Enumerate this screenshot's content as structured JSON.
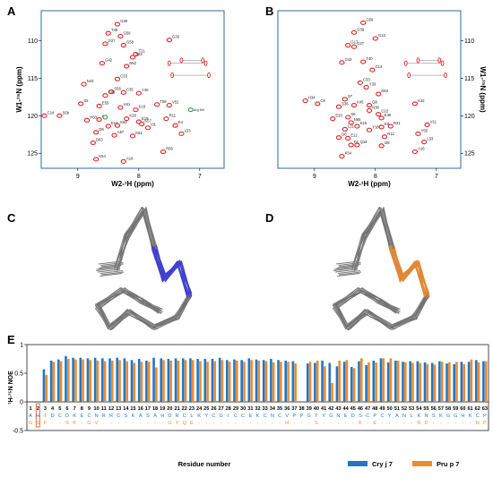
{
  "panels": {
    "A": "A",
    "B": "B",
    "C": "C",
    "D": "D",
    "E": "E"
  },
  "nmr": [
    {
      "id": "A",
      "x_label": "W2-¹H (ppm)",
      "y_label": "W1-¹⁵N (ppm)",
      "x_ticks": [
        "9",
        "8",
        "7"
      ],
      "y_ticks": [
        "110",
        "115",
        "120",
        "125"
      ],
      "xlim": [
        9.6,
        6.6
      ],
      "ylim": [
        106,
        127
      ]
    },
    {
      "id": "B",
      "x_label": "W2-¹H (ppm)",
      "y_label": "W1-¹⁵N (ppm)",
      "x_ticks": [
        "9",
        "8",
        "7"
      ],
      "y_ticks": [
        "110",
        "115",
        "120",
        "125"
      ],
      "xlim": [
        9.6,
        6.6
      ],
      "ylim": [
        106,
        127
      ]
    }
  ],
  "peaks_B": [
    {
      "label": "G58",
      "x": 8.2,
      "y": 107.6
    },
    {
      "label": "G39",
      "x": 8.35,
      "y": 108.9
    },
    {
      "label": "G10",
      "x": 8.0,
      "y": 109.7
    },
    {
      "label": "G17",
      "x": 8.45,
      "y": 110.6
    },
    {
      "label": "G27",
      "x": 8.35,
      "y": 110.8
    },
    {
      "label": "G42",
      "x": 8.55,
      "y": 112.9
    },
    {
      "label": "T40",
      "x": 8.2,
      "y": 112.8
    },
    {
      "label": "C13",
      "x": 8.05,
      "y": 113.9
    },
    {
      "label": "C33",
      "x": 8.25,
      "y": 115.6
    },
    {
      "label": "Y33",
      "x": 8.15,
      "y": 116.2
    },
    {
      "label": "D62",
      "x": 7.95,
      "y": 117.1
    },
    {
      "label": "S7",
      "x": 8.5,
      "y": 117.8
    },
    {
      "label": "K32",
      "x": 7.35,
      "y": 118.4
    },
    {
      "label": "H34",
      "x": 9.15,
      "y": 118.0
    },
    {
      "label": "C9",
      "x": 8.95,
      "y": 118.4
    },
    {
      "label": "S36",
      "x": 8.6,
      "y": 118.8
    },
    {
      "label": "K45",
      "x": 8.35,
      "y": 118.6
    },
    {
      "label": "Q8",
      "x": 8.1,
      "y": 118.6
    },
    {
      "label": "N36",
      "x": 8.1,
      "y": 119.3
    },
    {
      "label": "C22",
      "x": 7.95,
      "y": 119.8
    },
    {
      "label": "E46",
      "x": 7.9,
      "y": 120.3
    },
    {
      "label": "C26",
      "x": 9.7,
      "y": 120.7
    },
    {
      "label": "E20",
      "x": 8.7,
      "y": 120.4
    },
    {
      "label": "S9",
      "x": 8.45,
      "y": 120.2
    },
    {
      "label": "N55",
      "x": 8.4,
      "y": 120.9
    },
    {
      "label": "L21",
      "x": 8.5,
      "y": 121.8
    },
    {
      "label": "K15",
      "x": 8.3,
      "y": 121.4
    },
    {
      "label": "Y18",
      "x": 8.1,
      "y": 121.9
    },
    {
      "label": "K8",
      "x": 7.9,
      "y": 121.5
    },
    {
      "label": "R21",
      "x": 7.75,
      "y": 121.4
    },
    {
      "label": "V11",
      "x": 7.15,
      "y": 121.2
    },
    {
      "label": "D6",
      "x": 8.6,
      "y": 122.9
    },
    {
      "label": "E11",
      "x": 8.45,
      "y": 123.0
    },
    {
      "label": "R12",
      "x": 7.85,
      "y": 122.8
    },
    {
      "label": "Y50",
      "x": 7.3,
      "y": 122.4
    },
    {
      "label": "L53",
      "x": 7.2,
      "y": 123.5
    },
    {
      "label": "F4",
      "x": 8.4,
      "y": 123.9
    },
    {
      "label": "Q19",
      "x": 8.3,
      "y": 123.9
    },
    {
      "label": "I28",
      "x": 7.9,
      "y": 124.0
    },
    {
      "label": "A16",
      "x": 7.35,
      "y": 124.8
    },
    {
      "label": "K54",
      "x": 8.55,
      "y": 125.4
    },
    {
      "label": "C30",
      "x": 9.7,
      "y": 122.8
    }
  ],
  "peaks_A": [
    {
      "label": "G39",
      "x": 8.35,
      "y": 107.8
    },
    {
      "label": "T48",
      "x": 8.5,
      "y": 109.0
    },
    {
      "label": "G59",
      "x": 8.3,
      "y": 109.4
    },
    {
      "label": "G27",
      "x": 8.55,
      "y": 110.4
    },
    {
      "label": "G58",
      "x": 8.25,
      "y": 110.6
    },
    {
      "label": "G35",
      "x": 7.5,
      "y": 109.9
    },
    {
      "label": "T21",
      "x": 8.05,
      "y": 111.8
    },
    {
      "label": "G42",
      "x": 8.6,
      "y": 113.0
    },
    {
      "label": "N62",
      "x": 8.2,
      "y": 113.4
    },
    {
      "label": "S23",
      "x": 8.1,
      "y": 112.2
    },
    {
      "label": "C33",
      "x": 8.35,
      "y": 115.1
    },
    {
      "label": "N43",
      "x": 8.9,
      "y": 115.8
    },
    {
      "label": "S56",
      "x": 8.45,
      "y": 116.8
    },
    {
      "label": "C49",
      "x": 8.55,
      "y": 117.3
    },
    {
      "label": "C35",
      "x": 8.25,
      "y": 116.9
    },
    {
      "label": "Y40",
      "x": 8.0,
      "y": 117.0
    },
    {
      "label": "S5",
      "x": 8.95,
      "y": 118.4
    },
    {
      "label": "E55",
      "x": 8.65,
      "y": 118.7
    },
    {
      "label": "H41",
      "x": 8.3,
      "y": 118.9
    },
    {
      "label": "K16",
      "x": 8.05,
      "y": 119.2
    },
    {
      "label": "T58",
      "x": 7.7,
      "y": 118.5
    },
    {
      "label": "V52",
      "x": 7.5,
      "y": 118.6
    },
    {
      "label": "C24",
      "x": 9.55,
      "y": 120.0
    },
    {
      "label": "S5b",
      "x": 9.3,
      "y": 120.0
    },
    {
      "label": "C30",
      "x": 9.75,
      "y": 121.6
    },
    {
      "label": "H60",
      "x": 8.85,
      "y": 120.6
    },
    {
      "label": "C9",
      "x": 8.65,
      "y": 120.5
    },
    {
      "label": "K28",
      "x": 8.2,
      "y": 120.4
    },
    {
      "label": "E19",
      "x": 8.0,
      "y": 120.8
    },
    {
      "label": "R11",
      "x": 7.55,
      "y": 120.4
    },
    {
      "label": "K57",
      "x": 7.95,
      "y": 121.1
    },
    {
      "label": "E10",
      "x": 8.5,
      "y": 121.4
    },
    {
      "label": "K53",
      "x": 8.35,
      "y": 121.3
    },
    {
      "label": "I31",
      "x": 7.85,
      "y": 121.6
    },
    {
      "label": "D8",
      "x": 8.7,
      "y": 122.2
    },
    {
      "label": "A57",
      "x": 8.4,
      "y": 122.6
    },
    {
      "label": "K61",
      "x": 8.1,
      "y": 122.7
    },
    {
      "label": "L53",
      "x": 7.3,
      "y": 122.4
    },
    {
      "label": "D63",
      "x": 8.75,
      "y": 123.6
    },
    {
      "label": "R56",
      "x": 7.6,
      "y": 124.8
    },
    {
      "label": "K54",
      "x": 8.7,
      "y": 125.8
    },
    {
      "label": "A18",
      "x": 8.25,
      "y": 126.1
    },
    {
      "label": "E4",
      "x": 7.4,
      "y": 121.3
    }
  ],
  "peaks_A_green": [
    {
      "label": "Arg NH",
      "x": 7.15,
      "y": 119.2
    },
    {
      "label": "",
      "x": 8.55,
      "y": 120.2
    }
  ],
  "chart_data": {
    "type": "bar",
    "title": "",
    "ylabel": "¹H-¹⁵N NOE",
    "xlabel": "Residue number",
    "ylim": [
      -0.5,
      1
    ],
    "y_ticks": [
      "1",
      "0.5",
      "0",
      "-0.5"
    ],
    "categories": [
      "1",
      "2",
      "3",
      "4",
      "5",
      "6",
      "7",
      "8",
      "9",
      "10",
      "11",
      "12",
      "13",
      "14",
      "15",
      "16",
      "17",
      "18",
      "19",
      "20",
      "21",
      "22",
      "23",
      "24",
      "25",
      "26",
      "27",
      "28",
      "29",
      "30",
      "31",
      "32",
      "33",
      "34",
      "35",
      "36",
      "37",
      "38",
      "39",
      "40",
      "41",
      "42",
      "43",
      "44",
      "45",
      "46",
      "47",
      "48",
      "49",
      "50",
      "51",
      "52",
      "53",
      "54",
      "55",
      "56",
      "57",
      "58",
      "59",
      "60",
      "61",
      "62",
      "63"
    ],
    "seq_cryj7": [
      "A",
      "H",
      "I",
      "D",
      "C",
      "D",
      "K",
      "E",
      "C",
      "N",
      "R",
      "R",
      "C",
      "S",
      "K",
      "A",
      "S",
      "A",
      "H",
      "D",
      "R",
      "C",
      "L",
      "K",
      "Y",
      "C",
      "G",
      "I",
      "C",
      "C",
      "E",
      "K",
      "C",
      "N",
      "C",
      "V",
      "P",
      "P",
      "G",
      "T",
      "Y",
      "G",
      "N",
      "E",
      "D",
      "S",
      "C",
      "P",
      "C",
      "Y",
      "A",
      "N",
      "L",
      "K",
      "N",
      "S",
      "K",
      "G",
      "G",
      "H",
      "K",
      "C",
      "P"
    ],
    "seq_prup7": [
      "G",
      "S",
      "F",
      "-",
      "-",
      "S",
      "K",
      "-",
      "G",
      "V",
      "-",
      "-",
      "-",
      "-",
      "-",
      "-",
      "-",
      "-",
      "-",
      "G",
      "Y",
      "Q",
      "E",
      "-",
      "-",
      "-",
      "-",
      "-",
      "-",
      "-",
      "-",
      "-",
      "-",
      "-",
      "-",
      "H",
      "-",
      "-",
      "-",
      "S",
      "-",
      "-",
      "-",
      "-",
      "-",
      "K",
      "-",
      "E",
      "-",
      "-",
      "-",
      "-",
      "-",
      "R",
      "D",
      "-",
      "-",
      "-",
      "-",
      "-",
      "-",
      "N",
      "P"
    ],
    "series": [
      {
        "name": "Cry j 7",
        "color": "#1f77c8",
        "values": [
          null,
          null,
          0.57,
          0.72,
          0.74,
          0.8,
          0.77,
          0.77,
          0.76,
          0.77,
          0.76,
          0.76,
          0.77,
          0.76,
          0.73,
          0.75,
          0.72,
          0.77,
          0.76,
          0.75,
          0.76,
          0.76,
          0.76,
          0.75,
          0.75,
          0.75,
          0.77,
          0.73,
          0.74,
          0.73,
          0.76,
          0.74,
          0.73,
          0.75,
          0.73,
          0.72,
          0.71,
          null,
          0.67,
          0.68,
          0.72,
          0.68,
          0.62,
          0.7,
          0.61,
          0.71,
          0.64,
          0.72,
          0.76,
          0.69,
          0.72,
          0.7,
          0.71,
          0.71,
          0.69,
          0.68,
          0.71,
          0.67,
          0.66,
          0.7,
          0.7,
          0.73,
          0.71
        ]
      },
      {
        "name": "Pru p 7",
        "color": "#f08a2e",
        "values": [
          null,
          null,
          0.47,
          0.7,
          0.71,
          0.75,
          0.74,
          0.74,
          0.73,
          0.72,
          0.71,
          0.72,
          0.73,
          0.71,
          0.68,
          0.7,
          0.7,
          0.6,
          0.73,
          0.72,
          0.72,
          0.73,
          0.73,
          0.71,
          0.7,
          0.71,
          0.73,
          0.7,
          0.72,
          0.7,
          0.73,
          0.72,
          0.71,
          0.69,
          0.7,
          0.7,
          0.67,
          null,
          0.7,
          0.72,
          0.62,
          0.33,
          0.72,
          0.73,
          0.59,
          0.76,
          0.69,
          0.69,
          0.76,
          0.76,
          0.72,
          0.69,
          0.68,
          0.68,
          0.66,
          0.65,
          0.7,
          0.69,
          0.7,
          0.66,
          0.74,
          0.69,
          0.71
        ]
      }
    ],
    "legend_position": "bottom-right"
  }
}
